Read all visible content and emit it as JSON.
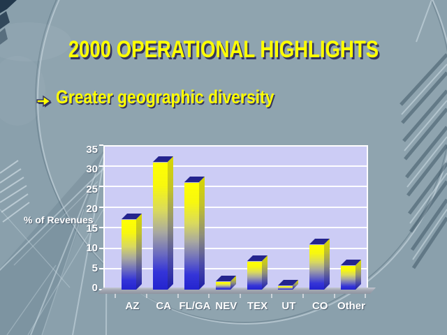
{
  "slide": {
    "title": "2000 OPERATIONAL HIGHLIGHTS",
    "bullet": "Greater geographic diversity",
    "bullet_icon": "right-arrow"
  },
  "colors": {
    "background": "#8AA0AC",
    "title_text": "#FFFF00",
    "text_shadow": "#35355E",
    "chart_wall": "#CCCCF5",
    "gridline": "#FFFFFF",
    "axis_text": "#FFFFFF",
    "bar_top_face": "#24248E",
    "bar_gradient_top": "#FFFF00",
    "bar_gradient_mid": "#A8A8A0",
    "bar_gradient_bottom": "#2424CF",
    "floor": "#9AA0AA"
  },
  "chart_data": {
    "type": "bar",
    "title": "",
    "categories": [
      "AZ",
      "CA",
      "FL/GA",
      "NEV",
      "TEX",
      "UT",
      "CO",
      "Other"
    ],
    "values": [
      17,
      31,
      26,
      2,
      7,
      1,
      11,
      6
    ],
    "xlabel": "",
    "ylabel": "% of Revenues",
    "ylim": [
      0,
      35
    ],
    "yticks": [
      0,
      5,
      10,
      15,
      20,
      25,
      30,
      35
    ],
    "grid": true,
    "legend": false,
    "style": "3d-gradient-bars",
    "units": "percent"
  }
}
